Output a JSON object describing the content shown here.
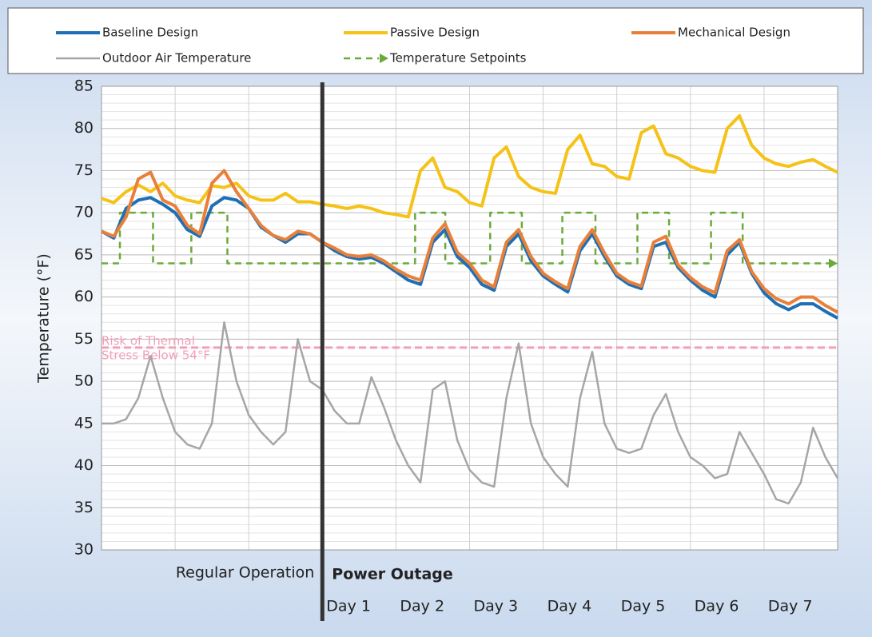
{
  "chart_data": {
    "type": "line",
    "y_label": "Temperature (°F)",
    "xlim": [
      0,
      10
    ],
    "ylim": [
      30,
      85
    ],
    "yticks": [
      30,
      35,
      40,
      45,
      50,
      55,
      60,
      65,
      70,
      75,
      80,
      85
    ],
    "grid": true,
    "legend": "top",
    "series": [
      {
        "name": "Baseline Design",
        "color": "#1f6fb5",
        "values": [
          67.8,
          67,
          70.5,
          71.5,
          71.8,
          71,
          70,
          68,
          67.2,
          70.8,
          71.8,
          71.5,
          70.5,
          68.3,
          67.3,
          66.5,
          67.5,
          67.5,
          66.5,
          65.5,
          64.8,
          64.5,
          64.7,
          64,
          63,
          62,
          61.5,
          66.5,
          68,
          64.8,
          63.5,
          61.5,
          60.8,
          66,
          67.5,
          64.3,
          62.5,
          61.5,
          60.6,
          65.5,
          67.5,
          64.8,
          62.5,
          61.5,
          61,
          66,
          66.5,
          63.5,
          62,
          60.8,
          60,
          65,
          66.5,
          62.8,
          60.5,
          59.2,
          58.5,
          59.2,
          59.2,
          58.3,
          57.5
        ]
      },
      {
        "name": "Passive Design",
        "color": "#f5c218",
        "values": [
          71.7,
          71.2,
          72.5,
          73.3,
          72.5,
          73.5,
          72,
          71.5,
          71.2,
          73.2,
          73,
          73.5,
          72,
          71.5,
          71.5,
          72.3,
          71.3,
          71.3,
          71,
          70.8,
          70.5,
          70.8,
          70.5,
          70,
          69.8,
          69.5,
          75,
          76.5,
          73,
          72.5,
          71.2,
          70.8,
          76.5,
          77.8,
          74.3,
          73,
          72.5,
          72.3,
          77.5,
          79.2,
          75.8,
          75.5,
          74.3,
          74,
          79.5,
          80.3,
          77,
          76.5,
          75.5,
          75,
          74.8,
          80,
          81.5,
          78,
          76.5,
          75.8,
          75.5,
          76,
          76.3,
          75.5,
          74.8
        ]
      },
      {
        "name": "Mechanical Design",
        "color": "#e8803a",
        "values": [
          67.8,
          67.2,
          69.5,
          74,
          74.8,
          71.5,
          70.8,
          68.5,
          67.5,
          73.5,
          75,
          72.5,
          70.5,
          68.5,
          67.3,
          66.8,
          67.8,
          67.5,
          66.5,
          65.8,
          65,
          64.8,
          65,
          64.3,
          63.3,
          62.5,
          62,
          67,
          68.7,
          65.3,
          64,
          62,
          61.2,
          66.5,
          68,
          64.8,
          62.8,
          61.8,
          61,
          66,
          68,
          65.2,
          62.8,
          61.8,
          61.3,
          66.5,
          67.2,
          63.8,
          62.3,
          61.2,
          60.5,
          65.5,
          66.8,
          63,
          61,
          59.8,
          59.2,
          60,
          60,
          59,
          58.2
        ]
      },
      {
        "name": "Outdoor Air Temperature",
        "color": "#a6a6a6",
        "values": [
          45,
          45,
          45.5,
          48,
          53,
          48,
          44,
          42.5,
          42,
          45,
          57,
          50,
          46,
          44,
          42.5,
          44,
          55,
          50,
          49,
          46.5,
          45,
          45,
          50.5,
          47,
          43,
          40,
          38,
          49,
          50,
          43,
          39.5,
          38,
          37.5,
          48,
          54.5,
          45,
          41,
          39,
          37.5,
          48,
          53.5,
          45,
          42,
          41.5,
          42,
          46,
          48.5,
          44,
          41,
          40,
          38.5,
          39,
          44,
          41.5,
          39,
          36,
          35.5,
          38,
          44.5,
          41,
          38.5
        ]
      },
      {
        "name": "Temperature Setpoints",
        "color": "#6aaa3a",
        "dashed": true,
        "x": [
          0,
          0.25,
          0.25,
          0.7,
          0.7,
          1.22,
          1.22,
          1.71,
          1.71,
          4.26,
          4.26,
          4.67,
          4.67,
          5.28,
          5.28,
          5.71,
          5.71,
          6.26,
          6.26,
          6.71,
          6.71,
          7.28,
          7.28,
          7.71,
          7.71,
          8.28,
          8.28,
          8.71,
          8.71,
          10
        ],
        "values": [
          64,
          64,
          70,
          70,
          64,
          64,
          70,
          70,
          64,
          64,
          70,
          70,
          64,
          64,
          70,
          70,
          64,
          64,
          70,
          70,
          64,
          64,
          70,
          70,
          64,
          64,
          70,
          70,
          64,
          64
        ]
      }
    ],
    "threshold": {
      "value": 54,
      "color": "#f0a0b8",
      "label_lines": [
        "Risk of Thermal",
        "Stress Below 54°F"
      ]
    },
    "divider_x": 3,
    "regions": [
      "Regular Operation",
      "Power Outage"
    ],
    "day_labels": [
      "Day 1",
      "Day 2",
      "Day 3",
      "Day 4",
      "Day 5",
      "Day 6",
      "Day 7"
    ]
  }
}
